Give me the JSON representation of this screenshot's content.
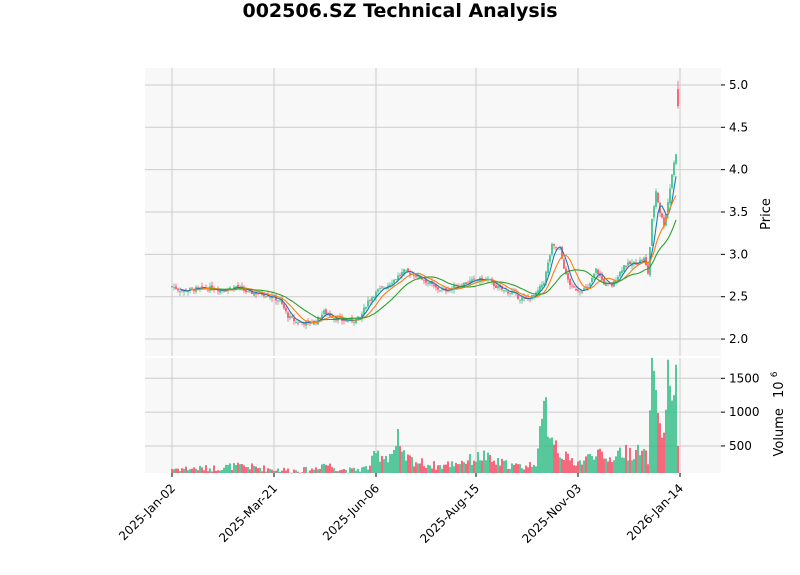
{
  "chart_data": {
    "type": "candlestick",
    "title": "002506.SZ Technical Analysis",
    "colors": {
      "up": "#2ebd85",
      "down": "#f6465d",
      "ma1": "#1f77b4",
      "ma2": "#ff7f0e",
      "ma3": "#2ca02c",
      "panel_bg": "#f8f8f8",
      "grid": "#cccccc"
    },
    "grid": true,
    "price_panel": {
      "ylabel": "Price",
      "ylim": [
        1.8,
        5.2
      ],
      "yticks": [
        2.0,
        2.5,
        3.0,
        3.5,
        4.0,
        4.5,
        5.0
      ],
      "ytick_labels": [
        "2.0",
        "2.5",
        "3.0",
        "3.5",
        "4.0",
        "4.5",
        "5.0"
      ],
      "close_anchors": [
        [
          0,
          2.62
        ],
        [
          5,
          2.57
        ],
        [
          12,
          2.59
        ],
        [
          20,
          2.6
        ],
        [
          26,
          2.58
        ],
        [
          32,
          2.62
        ],
        [
          38,
          2.55
        ],
        [
          44,
          2.54
        ],
        [
          48,
          2.52
        ],
        [
          54,
          2.45
        ],
        [
          58,
          2.27
        ],
        [
          62,
          2.2
        ],
        [
          68,
          2.19
        ],
        [
          72,
          2.21
        ],
        [
          76,
          2.32
        ],
        [
          80,
          2.27
        ],
        [
          84,
          2.22
        ],
        [
          90,
          2.22
        ],
        [
          94,
          2.25
        ],
        [
          98,
          2.45
        ],
        [
          103,
          2.57
        ],
        [
          108,
          2.64
        ],
        [
          112,
          2.72
        ],
        [
          116,
          2.8
        ],
        [
          120,
          2.77
        ],
        [
          124,
          2.73
        ],
        [
          128,
          2.67
        ],
        [
          132,
          2.6
        ],
        [
          136,
          2.57
        ],
        [
          142,
          2.62
        ],
        [
          148,
          2.67
        ],
        [
          152,
          2.7
        ],
        [
          158,
          2.7
        ],
        [
          162,
          2.62
        ],
        [
          166,
          2.57
        ],
        [
          170,
          2.55
        ],
        [
          174,
          2.48
        ],
        [
          178,
          2.47
        ],
        [
          182,
          2.53
        ],
        [
          186,
          2.68
        ],
        [
          190,
          3.1
        ],
        [
          194,
          3.05
        ],
        [
          197,
          2.75
        ],
        [
          200,
          2.6
        ],
        [
          204,
          2.58
        ],
        [
          208,
          2.6
        ],
        [
          212,
          2.82
        ],
        [
          216,
          2.66
        ],
        [
          220,
          2.63
        ],
        [
          226,
          2.87
        ],
        [
          232,
          2.9
        ],
        [
          236,
          2.95
        ],
        [
          238,
          2.78
        ],
        [
          240,
          3.4
        ],
        [
          242,
          3.75
        ],
        [
          244,
          3.5
        ],
        [
          246,
          3.35
        ],
        [
          248,
          3.62
        ],
        [
          250,
          3.95
        ],
        [
          252,
          4.2
        ]
      ],
      "special_bars": [
        {
          "i": 253,
          "open": 4.95,
          "close": 4.75,
          "high": 5.05,
          "low": 4.72
        }
      ],
      "moving_averages": [
        {
          "window": 5,
          "color": "#1f77b4"
        },
        {
          "window": 10,
          "color": "#ff7f0e"
        },
        {
          "window": 20,
          "color": "#2ca02c"
        }
      ]
    },
    "volume_panel": {
      "ylabel": "Volume",
      "scale_label": "10",
      "scale_exponent": "6",
      "ylim": [
        100,
        1800
      ],
      "yticks": [
        500,
        1000,
        1500
      ],
      "ytick_labels": [
        "500",
        "1000",
        "1500"
      ],
      "volume_anchors": [
        [
          0,
          165
        ],
        [
          20,
          170
        ],
        [
          30,
          200
        ],
        [
          40,
          190
        ],
        [
          50,
          160
        ],
        [
          60,
          140
        ],
        [
          70,
          150
        ],
        [
          76,
          240
        ],
        [
          84,
          160
        ],
        [
          90,
          140
        ],
        [
          98,
          180
        ],
        [
          102,
          380
        ],
        [
          108,
          350
        ],
        [
          112,
          460
        ],
        [
          116,
          340
        ],
        [
          122,
          270
        ],
        [
          128,
          230
        ],
        [
          134,
          200
        ],
        [
          140,
          240
        ],
        [
          146,
          280
        ],
        [
          150,
          300
        ],
        [
          156,
          360
        ],
        [
          160,
          270
        ],
        [
          166,
          240
        ],
        [
          172,
          200
        ],
        [
          178,
          200
        ],
        [
          182,
          280
        ],
        [
          186,
          950
        ],
        [
          190,
          680
        ],
        [
          194,
          420
        ],
        [
          198,
          300
        ],
        [
          204,
          260
        ],
        [
          208,
          320
        ],
        [
          212,
          450
        ],
        [
          216,
          280
        ],
        [
          220,
          330
        ],
        [
          224,
          420
        ],
        [
          228,
          400
        ],
        [
          232,
          420
        ],
        [
          236,
          380
        ],
        [
          238,
          300
        ],
        [
          240,
          1450
        ],
        [
          242,
          1080
        ],
        [
          244,
          880
        ],
        [
          246,
          650
        ],
        [
          248,
          1500
        ],
        [
          250,
          1480
        ],
        [
          252,
          1720
        ],
        [
          253,
          460
        ]
      ],
      "volume_spikes": [
        [
          241,
          1610
        ],
        [
          251,
          1250
        ],
        [
          252,
          1700
        ],
        [
          113,
          750
        ],
        [
          187,
          1220
        ]
      ]
    },
    "x_axis": {
      "n_bars": 254,
      "tick_indices": [
        0,
        51,
        102,
        152,
        203,
        254
      ],
      "tick_labels": [
        "2025-Jan-02",
        "2025-Mar-21",
        "2025-Jun-06",
        "2025-Aug-15",
        "2025-Nov-03",
        "2026-Jan-14"
      ]
    }
  }
}
